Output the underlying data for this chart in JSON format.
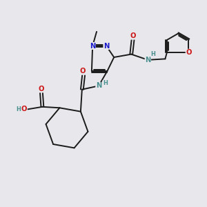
{
  "background_color": "#e8e8ec",
  "fig_size": [
    3.0,
    3.0
  ],
  "dpi": 100,
  "bond_color": "#1a1a1a",
  "bond_lw": 1.4,
  "N_color": "#1a1acc",
  "O_color": "#cc1a1a",
  "NH_color": "#4a9090",
  "label_fontsize": 7.2,
  "small_fontsize": 6.0,
  "xlim": [
    0,
    10
  ],
  "ylim": [
    0,
    10
  ]
}
